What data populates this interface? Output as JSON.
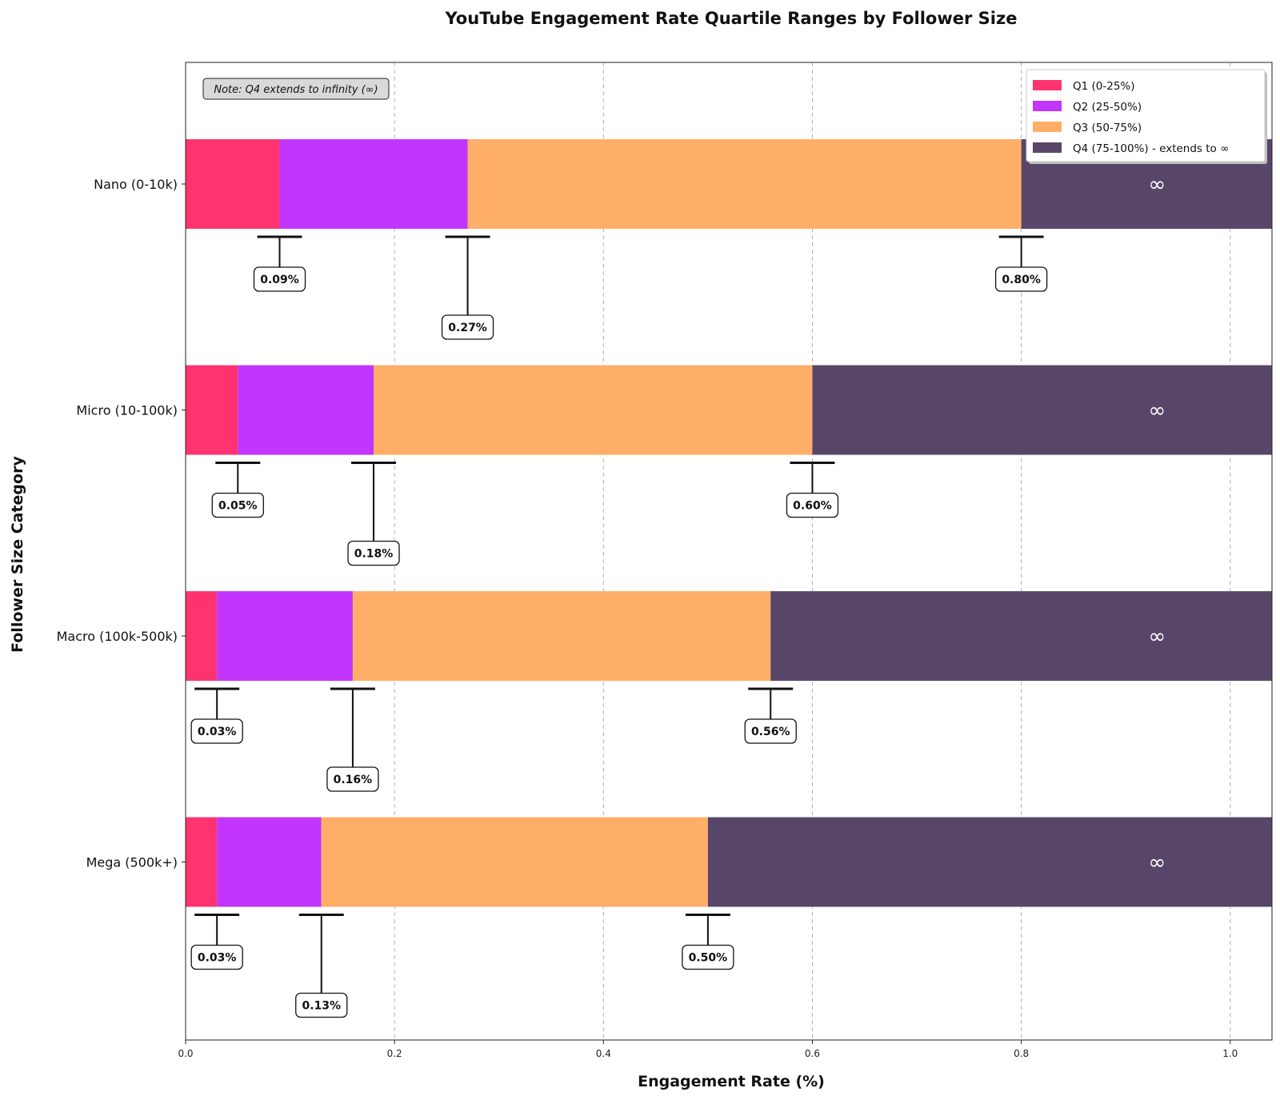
{
  "chart_data": {
    "type": "bar",
    "orientation": "horizontal",
    "stacked": true,
    "title": "YouTube Engagement Rate Quartile Ranges by Follower Size",
    "xlabel": "Engagement Rate (%)",
    "ylabel": "Follower Size Category",
    "xlim": [
      0,
      1.04
    ],
    "xticks": [
      "0.0",
      "0.2",
      "0.4",
      "0.6",
      "0.8",
      "1.0"
    ],
    "grid": "x-dashed",
    "legend_position": "top-right",
    "categories": [
      "Nano (0-10k)",
      "Micro (10-100k)",
      "Macro (100k-500k)",
      "Mega (500k+)"
    ],
    "series": [
      {
        "name": "Q1 (0-25%)",
        "color": "#ff3370",
        "values": [
          0.09,
          0.05,
          0.03,
          0.03
        ]
      },
      {
        "name": "Q2 (25-50%)",
        "color": "#c135fc",
        "values": [
          0.27,
          0.18,
          0.16,
          0.13
        ]
      },
      {
        "name": "Q3 (50-75%)",
        "color": "#ffae68",
        "values": [
          0.8,
          0.6,
          0.56,
          0.5
        ]
      },
      {
        "name": "Q4 (75-100%) - extends to ∞",
        "color": "#584669",
        "values": [
          "∞",
          "∞",
          "∞",
          "∞"
        ]
      }
    ],
    "boundary_labels": [
      [
        "0.09%",
        "0.27%",
        "0.80%"
      ],
      [
        "0.05%",
        "0.18%",
        "0.60%"
      ],
      [
        "0.03%",
        "0.16%",
        "0.56%"
      ],
      [
        "0.03%",
        "0.13%",
        "0.50%"
      ]
    ],
    "infinity_symbol": "∞",
    "note": "Note: Q4 extends to infinity (∞)"
  }
}
